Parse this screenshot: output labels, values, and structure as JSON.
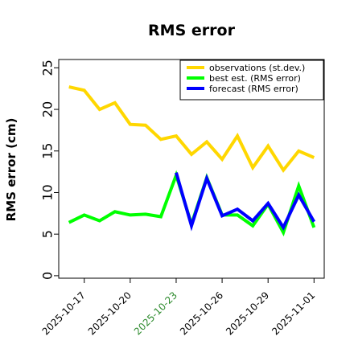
{
  "chart_data": {
    "type": "line",
    "title": "RMS error",
    "ylabel": "RMS error (cm)",
    "xlabel": "",
    "ylim": [
      -0.3,
      26
    ],
    "y_ticks": [
      0,
      5,
      10,
      15,
      20,
      25
    ],
    "x_dates": [
      "2025-10-16",
      "2025-10-17",
      "2025-10-18",
      "2025-10-19",
      "2025-10-20",
      "2025-10-21",
      "2025-10-22",
      "2025-10-23",
      "2025-10-24",
      "2025-10-25",
      "2025-10-26",
      "2025-10-27",
      "2025-10-28",
      "2025-10-29",
      "2025-10-30",
      "2025-10-31",
      "2025-11-01"
    ],
    "x_ticks": [
      {
        "label": "2025-10-17",
        "color": "#000000"
      },
      {
        "label": "2025-10-20",
        "color": "#000000"
      },
      {
        "label": "2025-10-23",
        "color": "#2e8b2e"
      },
      {
        "label": "2025-10-26",
        "color": "#000000"
      },
      {
        "label": "2025-10-29",
        "color": "#000000"
      },
      {
        "label": "2025-11-01",
        "color": "#000000"
      }
    ],
    "x_tick_dates": [
      "2025-10-17",
      "2025-10-20",
      "2025-10-23",
      "2025-10-26",
      "2025-10-29",
      "2025-11-01"
    ],
    "xlim": [
      "2025-10-15T08:00",
      "2025-11-01T16:00"
    ],
    "grid": false,
    "legend_position": "top-right",
    "series": [
      {
        "name": "observations (st.dev.)",
        "color": "#ffd700",
        "values": [
          22.7,
          22.3,
          20.0,
          20.8,
          18.2,
          18.1,
          16.4,
          16.8,
          14.6,
          16.1,
          14.0,
          16.8,
          13.0,
          15.6,
          12.7,
          15.0,
          14.2
        ]
      },
      {
        "name": "best est. (RMS error)",
        "color": "#00ff00",
        "values": [
          6.4,
          7.3,
          6.6,
          7.7,
          7.3,
          7.4,
          7.1,
          12.1,
          6.2,
          11.8,
          7.3,
          7.3,
          6.0,
          8.6,
          5.2,
          10.8,
          5.8
        ]
      },
      {
        "name": "forecast (RMS error)",
        "color": "#0000ff",
        "start_index": 7,
        "values": [
          null,
          null,
          null,
          null,
          null,
          null,
          null,
          12.4,
          6.0,
          11.7,
          7.2,
          8.0,
          6.6,
          8.7,
          5.8,
          9.7,
          6.5
        ]
      }
    ]
  }
}
